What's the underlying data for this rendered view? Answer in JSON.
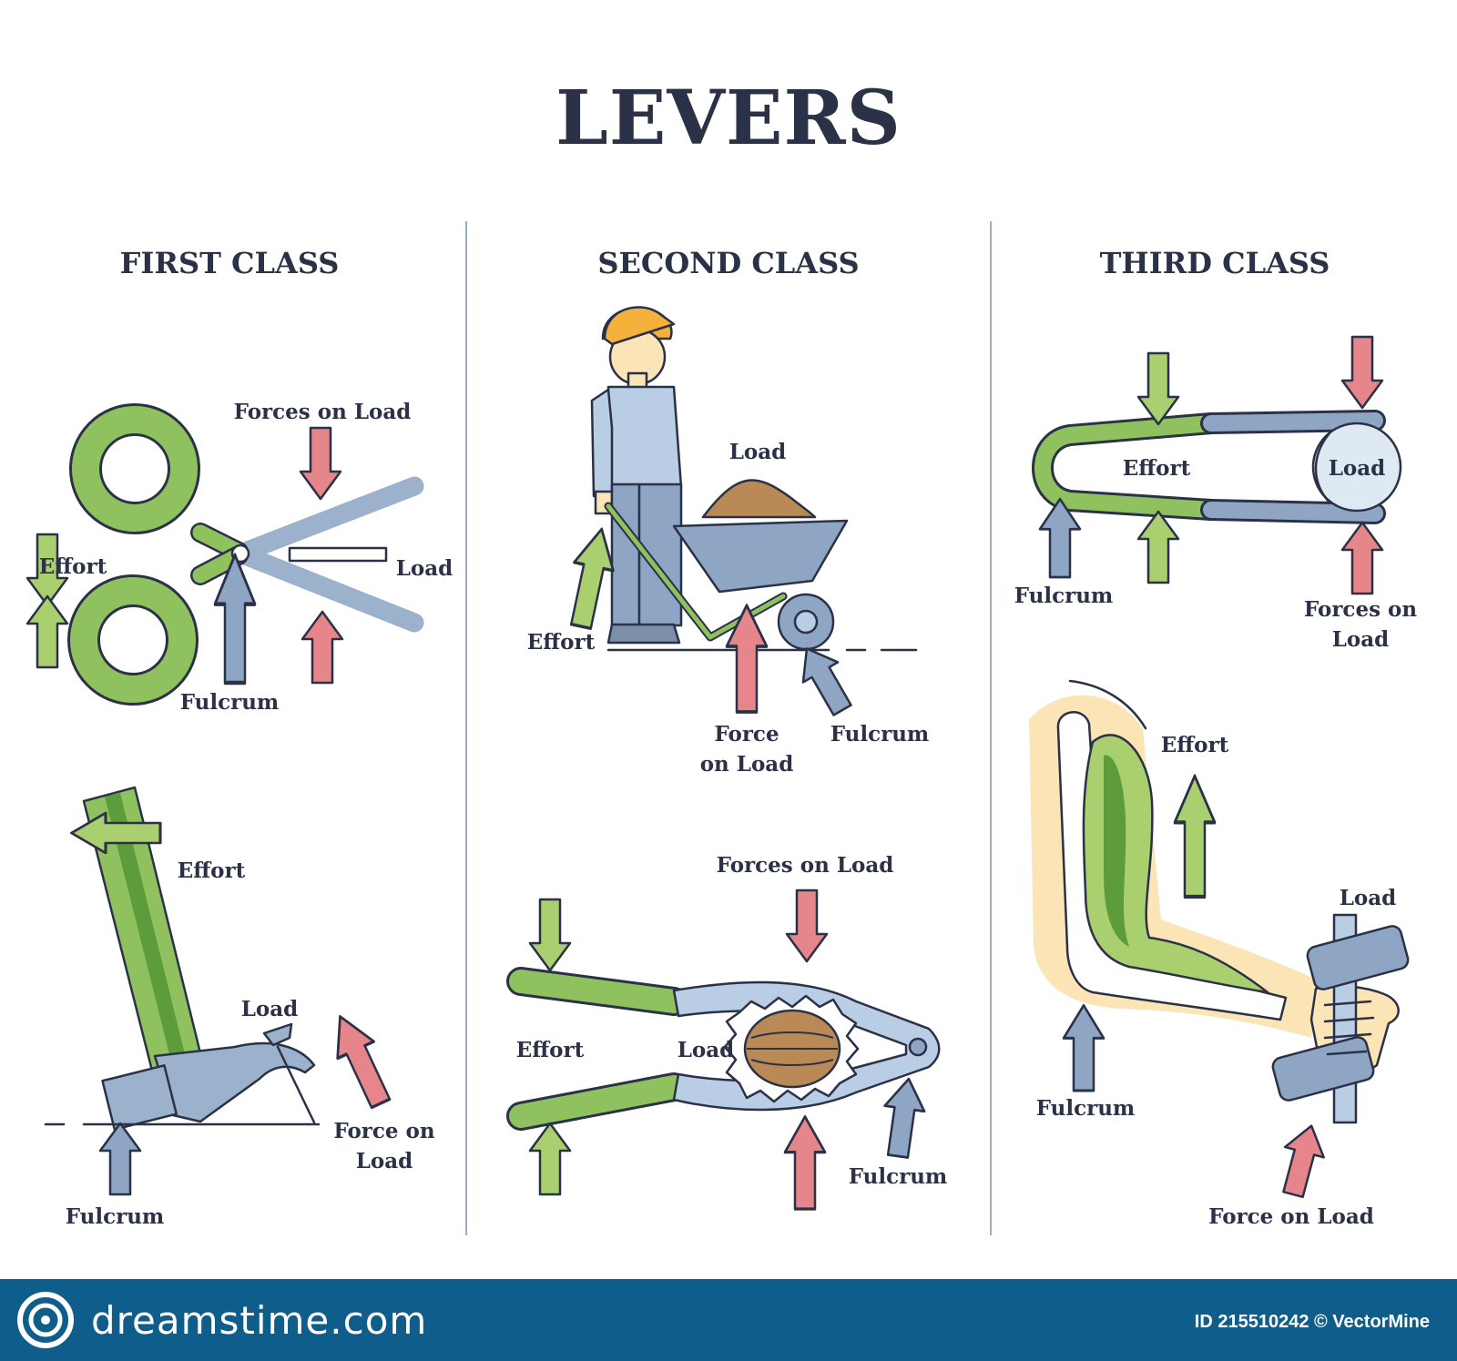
{
  "title": "LEVERS",
  "columns": [
    {
      "heading": "FIRST CLASS"
    },
    {
      "heading": "SECOND CLASS"
    },
    {
      "heading": "THIRD CLASS"
    }
  ],
  "labels": {
    "effort": "Effort",
    "load": "Load",
    "fulcrum": "Fulcrum",
    "forces_on_load": "Forces on Load",
    "forces_on": "Forces on",
    "force_on_load": "Force on Load",
    "force": "Force",
    "on_load": "on Load",
    "force_on": "Force on"
  },
  "footer": {
    "logo": "dreamstime.com",
    "credit": "ID 215510242 © VectorMine"
  },
  "colors": {
    "effort": "#a9cf6f",
    "fulcrum": "#8ea6c4",
    "load": "#e6868a",
    "lever_green": "#8fc25e",
    "metal": "#9cb2cc",
    "outline": "#2b3147",
    "footer_bg": "#0f5d8a"
  }
}
